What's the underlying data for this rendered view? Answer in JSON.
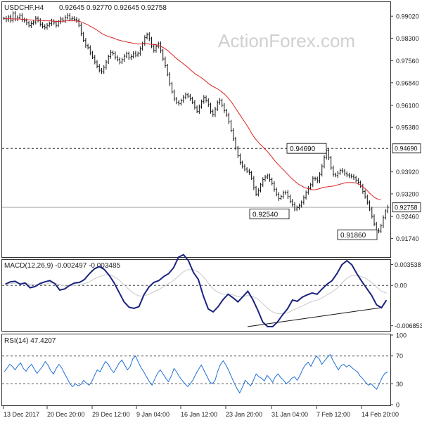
{
  "watermark": "ActionForex.com",
  "chart_data": [
    {
      "type": "candlestick",
      "title": "USDCHF,H4",
      "ohlc_label": "0.92645 0.92770 0.92645 0.92758",
      "y_ticks": [
        "0.99020",
        "0.98300",
        "0.97560",
        "0.96840",
        "0.96100",
        "0.95380",
        "0.93920",
        "0.93200",
        "0.92460",
        "0.91740"
      ],
      "ylim": [
        0.9115,
        0.9946
      ],
      "x_ticks": [
        "13 Dec 2017",
        "20 Dec 20:00",
        "29 Dec 12:00",
        "9 Jan 04:00",
        "16 Jan 12:00",
        "23 Jan 20:00",
        "31 Jan 04:00",
        "7 Feb 12:00",
        "14 Feb 20:00"
      ],
      "annotations": [
        {
          "label": "0.94690",
          "value": 0.9469
        },
        {
          "label": "0.92540",
          "value": 0.9254
        },
        {
          "label": "0.91860",
          "value": 0.9186
        }
      ],
      "levels": [
        {
          "label": "0.94690",
          "value": 0.9469,
          "style": "dashed",
          "color": "#333333"
        },
        {
          "label": "0.92758",
          "value": 0.92758,
          "style": "solid",
          "color": "#aaaaaa"
        }
      ],
      "series": [
        {
          "name": "",
          "color": "#111111",
          "close": [
            0.9895,
            0.989,
            0.99,
            0.9888,
            0.9912,
            0.9893,
            0.9898,
            0.9905,
            0.9891,
            0.9887,
            0.988,
            0.9871,
            0.9878,
            0.9883,
            0.9895,
            0.9888,
            0.9876,
            0.9869,
            0.9865,
            0.9872,
            0.9878,
            0.9886,
            0.988,
            0.9872,
            0.9884,
            0.9893,
            0.9887,
            0.9898,
            0.9905,
            0.9893,
            0.9895,
            0.9892,
            0.9888,
            0.9872,
            0.9845,
            0.9823,
            0.9806,
            0.9799,
            0.9782,
            0.9768,
            0.9752,
            0.9738,
            0.9725,
            0.972,
            0.9735,
            0.9752,
            0.977,
            0.9784,
            0.9779,
            0.9768,
            0.976,
            0.9752,
            0.976,
            0.9771,
            0.9779,
            0.9766,
            0.977,
            0.9781,
            0.9775,
            0.978,
            0.9795,
            0.9813,
            0.9832,
            0.9842,
            0.9828,
            0.9804,
            0.979,
            0.9803,
            0.9812,
            0.9789,
            0.9762,
            0.974,
            0.9711,
            0.9681,
            0.9654,
            0.9631,
            0.962,
            0.9616,
            0.9625,
            0.9637,
            0.9645,
            0.964,
            0.9632,
            0.962,
            0.9604,
            0.959,
            0.9605,
            0.9623,
            0.9636,
            0.9626,
            0.9612,
            0.959,
            0.9579,
            0.9598,
            0.962,
            0.9626,
            0.961,
            0.9593,
            0.9578,
            0.9556,
            0.9528,
            0.95,
            0.947,
            0.9445,
            0.9422,
            0.941,
            0.9401,
            0.9395,
            0.939,
            0.9371,
            0.934,
            0.9319,
            0.9331,
            0.935,
            0.9367,
            0.9375,
            0.9379,
            0.9367,
            0.9354,
            0.9335,
            0.9318,
            0.9305,
            0.9312,
            0.9323,
            0.9325,
            0.9311,
            0.9296,
            0.9285,
            0.927,
            0.9275,
            0.9281,
            0.9292,
            0.9307,
            0.9325,
            0.9338,
            0.935,
            0.937,
            0.9369,
            0.9362,
            0.9384,
            0.9411,
            0.9439,
            0.9462,
            0.9438,
            0.9405,
            0.9384,
            0.938,
            0.9388,
            0.9397,
            0.9395,
            0.9386,
            0.9382,
            0.9379,
            0.9377,
            0.9373,
            0.9364,
            0.9358,
            0.9345,
            0.9328,
            0.931,
            0.9292,
            0.927,
            0.9246,
            0.9221,
            0.92,
            0.9198,
            0.9215,
            0.9242,
            0.9264,
            0.9276
          ]
        },
        {
          "name": "",
          "color": "#dd2222",
          "values": [
            0.9894,
            0.9894,
            0.9894,
            0.9894,
            0.9893,
            0.9893,
            0.9893,
            0.9893,
            0.9892,
            0.9892,
            0.9891,
            0.989,
            0.989,
            0.9889,
            0.9889,
            0.9889,
            0.9889,
            0.9888,
            0.9887,
            0.9887,
            0.9887,
            0.9887,
            0.9886,
            0.9885,
            0.9885,
            0.9886,
            0.9886,
            0.9886,
            0.9887,
            0.9887,
            0.9887,
            0.9887,
            0.9887,
            0.9886,
            0.9885,
            0.9882,
            0.9879,
            0.9876,
            0.9872,
            0.9868,
            0.9864,
            0.986,
            0.9855,
            0.985,
            0.9845,
            0.9841,
            0.9838,
            0.9835,
            0.9833,
            0.9831,
            0.9828,
            0.9825,
            0.9823,
            0.9821,
            0.982,
            0.9818,
            0.9816,
            0.9815,
            0.9813,
            0.9812,
            0.9811,
            0.9811,
            0.9811,
            0.9812,
            0.9812,
            0.9811,
            0.981,
            0.9809,
            0.9809,
            0.9807,
            0.9804,
            0.9801,
            0.9797,
            0.9792,
            0.9786,
            0.9779,
            0.9773,
            0.9766,
            0.976,
            0.9754,
            0.9749,
            0.9743,
            0.9737,
            0.9731,
            0.9724,
            0.9718,
            0.9712,
            0.9708,
            0.9703,
            0.9698,
            0.9692,
            0.9686,
            0.968,
            0.9675,
            0.9671,
            0.9667,
            0.9663,
            0.9658,
            0.9652,
            0.9646,
            0.9639,
            0.963,
            0.9621,
            0.961,
            0.9599,
            0.9588,
            0.9577,
            0.9566,
            0.9555,
            0.9544,
            0.9532,
            0.9519,
            0.9508,
            0.9498,
            0.949,
            0.9482,
            0.9475,
            0.9467,
            0.946,
            0.9451,
            0.9442,
            0.9433,
            0.9424,
            0.9416,
            0.9409,
            0.9401,
            0.9394,
            0.9386,
            0.9378,
            0.9371,
            0.9364,
            0.9358,
            0.9352,
            0.9348,
            0.9344,
            0.934,
            0.9338,
            0.9336,
            0.9334,
            0.9333,
            0.9334,
            0.9336,
            0.9338,
            0.9341,
            0.9342,
            0.9343,
            0.9344,
            0.9345,
            0.9346,
            0.9348,
            0.935,
            0.9352,
            0.9354,
            0.9356,
            0.9357,
            0.9357,
            0.9357,
            0.9357,
            0.9355,
            0.9352,
            0.9348,
            0.9343,
            0.9337,
            0.933,
            0.9322,
            0.9316,
            0.9309,
            0.9305,
            0.9302,
            0.93
          ]
        }
      ]
    },
    {
      "type": "line",
      "title": "MACD(12,26,9) -0.002497 -0.003485",
      "y_ticks": [
        "0.003538",
        "0.00",
        "-0.006853"
      ],
      "ylim": [
        -0.0076,
        0.0042
      ],
      "zero_line": {
        "style": "dashed"
      },
      "series": [
        {
          "name": "",
          "color": "#1a237e",
          "values": [
            0.0002,
            0.0006,
            0.0007,
            0.0002,
            0.0004,
            -0.0004,
            -0.0002,
            0.0003,
            0.0006,
            0.0008,
            0.0003,
            -0.0008,
            -0.0006,
            0.0,
            0.0004,
            0.0005,
            0.001,
            0.002,
            0.0028,
            0.0032,
            0.0027,
            0.0017,
            0.0004,
            -0.0012,
            -0.0028,
            -0.0037,
            -0.0039,
            -0.0036,
            -0.0016,
            -0.0003,
            0.0005,
            0.0008,
            0.0015,
            0.002,
            0.003,
            0.0048,
            0.0052,
            0.0042,
            0.0022,
            0.001,
            -0.0018,
            -0.004,
            -0.0045,
            -0.0036,
            -0.0024,
            -0.0015,
            -0.0021,
            -0.0028,
            -0.0019,
            -0.001,
            -0.0024,
            -0.0042,
            -0.0062,
            -0.007,
            -0.007,
            -0.0062,
            -0.005,
            -0.004,
            -0.0025,
            -0.0027,
            -0.002,
            -0.0016,
            -0.0013,
            -0.0015,
            -0.0006,
            0.0002,
            0.0008,
            0.002,
            0.0035,
            0.0042,
            0.0035,
            0.002,
            0.0007,
            -0.0005,
            -0.0017,
            -0.0033,
            -0.0038,
            -0.0025
          ]
        },
        {
          "name": "",
          "color": "#c8c8c8",
          "values": [
            0.0002,
            0.0003,
            0.0004,
            0.0004,
            0.0004,
            0.0002,
            0.0001,
            0.0001,
            0.0002,
            0.0004,
            0.0004,
            0.0001,
            -0.0001,
            -0.0001,
            0.0,
            0.0001,
            0.0003,
            0.0006,
            0.0011,
            0.0015,
            0.0018,
            0.0018,
            0.0015,
            0.0009,
            0.0001,
            -0.0007,
            -0.0014,
            -0.0018,
            -0.0018,
            -0.0015,
            -0.0011,
            -0.0007,
            -0.0002,
            0.0003,
            0.0008,
            0.0016,
            0.0023,
            0.0027,
            0.0026,
            0.0023,
            0.0015,
            0.0004,
            -0.0006,
            -0.0012,
            -0.0015,
            -0.0015,
            -0.0016,
            -0.0019,
            -0.0019,
            -0.0017,
            -0.0019,
            -0.0023,
            -0.0031,
            -0.0039,
            -0.0045,
            -0.0048,
            -0.0048,
            -0.0047,
            -0.0042,
            -0.0039,
            -0.0035,
            -0.0031,
            -0.0027,
            -0.0025,
            -0.0021,
            -0.0016,
            -0.0011,
            -0.0005,
            0.0004,
            0.0012,
            0.0017,
            0.0017,
            0.0015,
            0.0011,
            0.0005,
            -0.0003,
            -0.001,
            -0.0013
          ]
        }
      ]
    },
    {
      "type": "line",
      "title": "RSI(14) 47.4207",
      "y_ticks": [
        "100",
        "70",
        "30",
        "0"
      ],
      "ylim": [
        0,
        100
      ],
      "levels": [
        {
          "value": 70,
          "style": "dashed"
        },
        {
          "value": 30,
          "style": "dashed"
        }
      ],
      "series": [
        {
          "name": "",
          "color": "#1f6fd6",
          "values": [
            47,
            52,
            58,
            55,
            50,
            56,
            60,
            52,
            48,
            54,
            58,
            51,
            45,
            50,
            55,
            62,
            57,
            49,
            44,
            52,
            58,
            53,
            45,
            38,
            30,
            26,
            30,
            27,
            29,
            35,
            31,
            28,
            33,
            42,
            50,
            47,
            55,
            62,
            58,
            51,
            46,
            53,
            60,
            64,
            57,
            50,
            55,
            66,
            70,
            61,
            53,
            47,
            40,
            33,
            28,
            37,
            45,
            50,
            44,
            38,
            33,
            41,
            52,
            47,
            40,
            35,
            30,
            26,
            30,
            36,
            44,
            51,
            57,
            49,
            41,
            33,
            30,
            35,
            48,
            58,
            63,
            57,
            49,
            40,
            31,
            23,
            17,
            25,
            35,
            31,
            27,
            35,
            44,
            40,
            38,
            34,
            42,
            38,
            32,
            40,
            44,
            39,
            35,
            30,
            33,
            38,
            40,
            35,
            42,
            51,
            57,
            61,
            55,
            63,
            70,
            66,
            58,
            63,
            68,
            72,
            64,
            57,
            50,
            56,
            58,
            54,
            57,
            53,
            50,
            47,
            41,
            37,
            32,
            28,
            30,
            26,
            22,
            30,
            39,
            45,
            47
          ]
        }
      ]
    }
  ]
}
